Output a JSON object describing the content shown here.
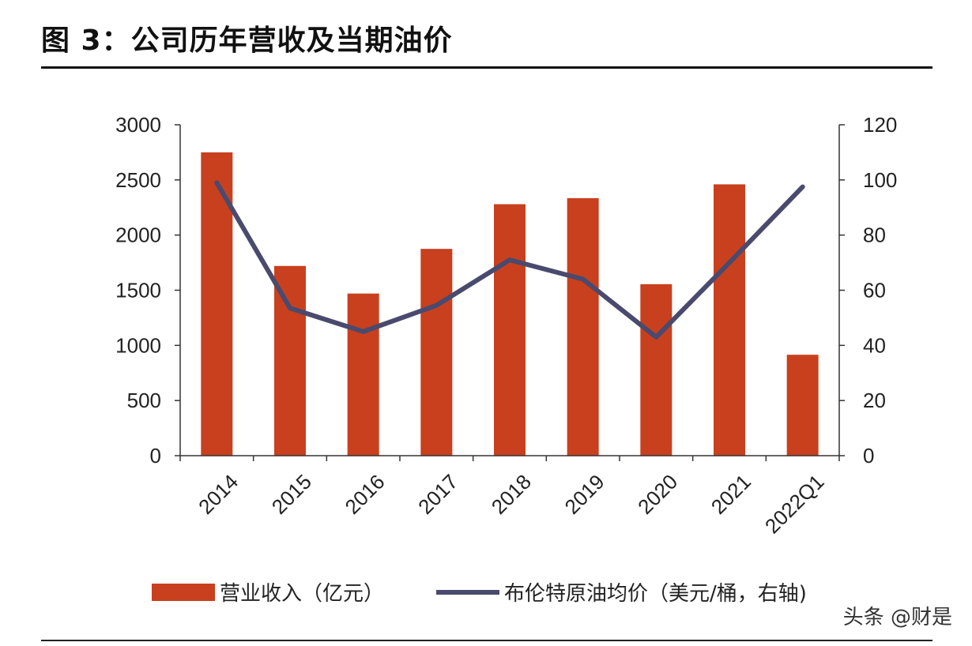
{
  "title": "图 3：公司历年营收及当期油价",
  "watermark": "头条 @财是",
  "colors": {
    "bar": "#c8401e",
    "line": "#4a4a6e",
    "axis": "#333333"
  },
  "chart_data": {
    "type": "bar",
    "categories": [
      "2014",
      "2015",
      "2016",
      "2017",
      "2018",
      "2019",
      "2020",
      "2021",
      "2022Q1"
    ],
    "series": [
      {
        "name": "营业收入（亿元）",
        "type": "bar",
        "axis": "left",
        "values": [
          2750,
          1720,
          1470,
          1875,
          2280,
          2335,
          1555,
          2460,
          915
        ]
      },
      {
        "name": "布伦特原油均价（美元/桶，右轴)",
        "type": "line",
        "axis": "right",
        "values": [
          99,
          53.5,
          45,
          54.5,
          71,
          64,
          43,
          70,
          97.5
        ]
      }
    ],
    "y_left": {
      "range": [
        0,
        3000
      ],
      "ticks": [
        0,
        500,
        1000,
        1500,
        2000,
        2500,
        3000
      ]
    },
    "y_right": {
      "range": [
        0,
        120
      ],
      "ticks": [
        0,
        20,
        40,
        60,
        80,
        100,
        120
      ]
    },
    "legend": "bottom",
    "grid": false
  }
}
